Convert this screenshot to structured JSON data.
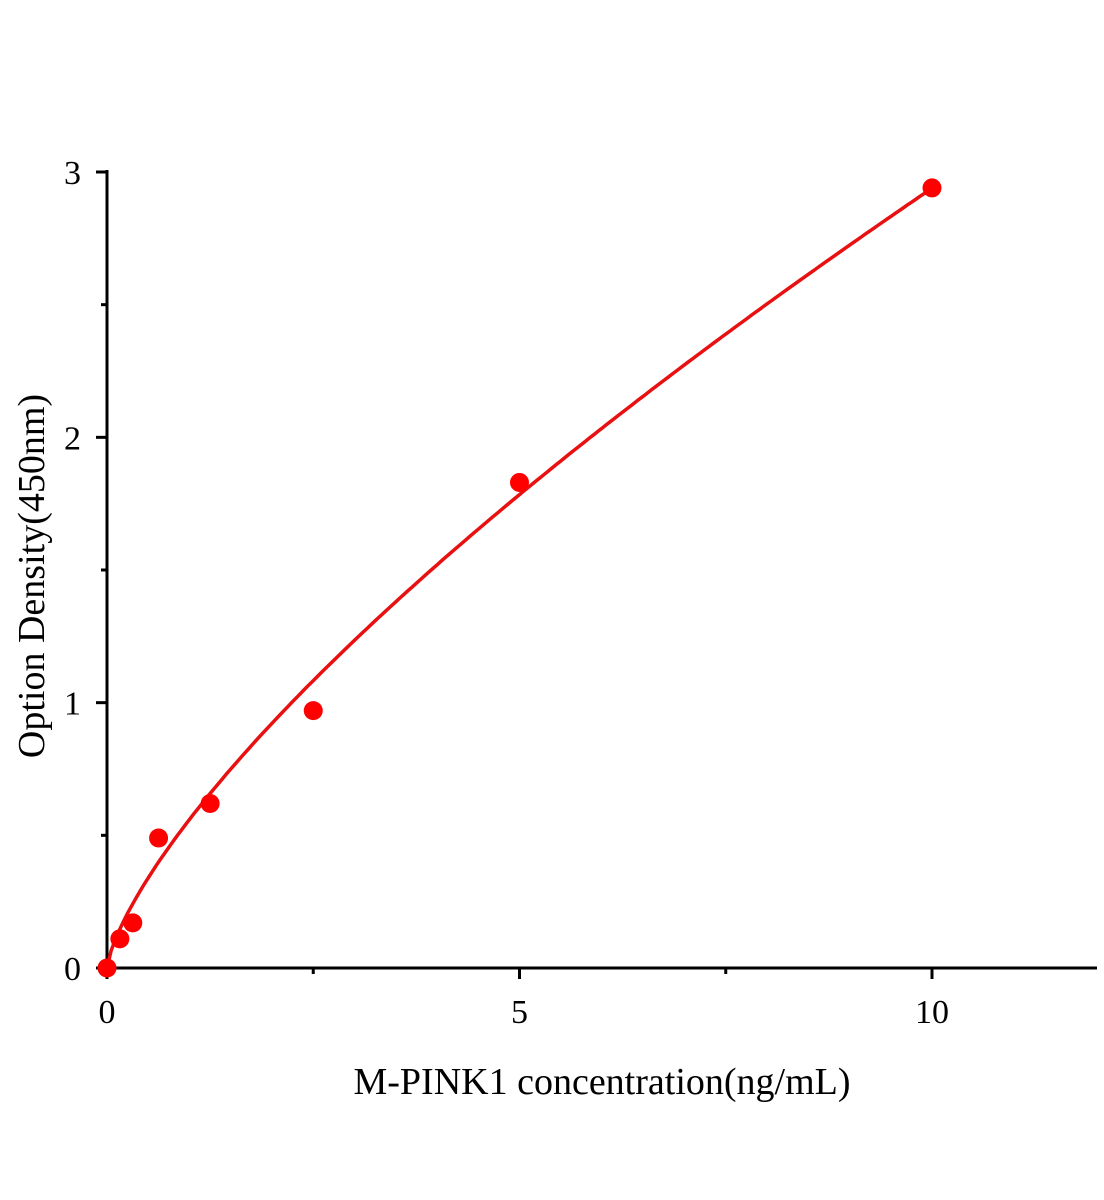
{
  "chart_data": {
    "type": "scatter",
    "title": "",
    "xlabel": "M-PINK1 concentration(ng/mL)",
    "ylabel": "Option Density(450nm)",
    "xlim": [
      0,
      12
    ],
    "ylim": [
      0,
      3
    ],
    "x_ticks": [
      0,
      5,
      10
    ],
    "x_tick_labels": [
      "0",
      "5",
      "10"
    ],
    "x_minor_ticks": [
      2.5,
      7.5
    ],
    "y_ticks": [
      0,
      1,
      2,
      3
    ],
    "y_tick_labels": [
      "0",
      "1",
      "2",
      "3"
    ],
    "y_minor_ticks": [
      0.5,
      1.5,
      2.5
    ],
    "grid": false,
    "series": [
      {
        "points": [
          {
            "x": 0,
            "y": 0
          },
          {
            "x": 0.156,
            "y": 0.11
          },
          {
            "x": 0.3125,
            "y": 0.17
          },
          {
            "x": 0.625,
            "y": 0.49
          },
          {
            "x": 1.25,
            "y": 0.62
          },
          {
            "x": 2.5,
            "y": 0.97
          },
          {
            "x": 5,
            "y": 1.83
          },
          {
            "x": 10,
            "y": 2.94
          }
        ],
        "color": "#ff0000"
      }
    ],
    "fit_curve": {
      "type": "power",
      "a": 0.56,
      "b": 0.72,
      "xrange": [
        0,
        10
      ],
      "color": "#e81010"
    }
  }
}
